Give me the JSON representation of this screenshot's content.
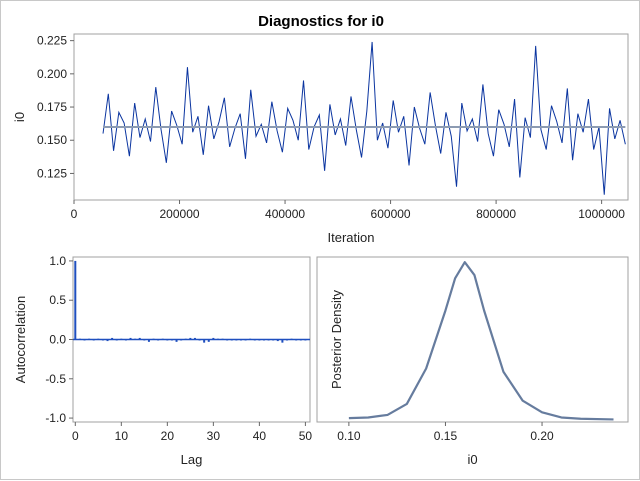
{
  "title": "Diagnostics for i0",
  "colors": {
    "trace": "#0b35a0",
    "mean": "#8c9bb2",
    "acf": "#1f4fbf",
    "density": "#667c9e",
    "frame": "#a0a0a0"
  },
  "chart_data": [
    {
      "type": "line",
      "name": "trace",
      "xlabel": "Iteration",
      "ylabel": "i0",
      "xlim": [
        0,
        1050000
      ],
      "ylim": [
        0.105,
        0.23
      ],
      "xticks": [
        "0",
        "200000",
        "400000",
        "600000",
        "800000",
        "1000000"
      ],
      "xtick_values": [
        0,
        200000,
        400000,
        600000,
        800000,
        1000000
      ],
      "yticks": [
        "0.125",
        "0.150",
        "0.175",
        "0.200",
        "0.225"
      ],
      "ytick_values": [
        0.125,
        0.15,
        0.175,
        0.2,
        0.225
      ],
      "x_start": 55000,
      "x_step": 10000,
      "mean": 0.16,
      "values": [
        0.155,
        0.185,
        0.142,
        0.171,
        0.163,
        0.138,
        0.178,
        0.152,
        0.166,
        0.149,
        0.19,
        0.158,
        0.133,
        0.172,
        0.161,
        0.147,
        0.205,
        0.156,
        0.168,
        0.139,
        0.176,
        0.151,
        0.164,
        0.182,
        0.145,
        0.159,
        0.17,
        0.136,
        0.188,
        0.153,
        0.162,
        0.148,
        0.179,
        0.157,
        0.141,
        0.174,
        0.165,
        0.15,
        0.195,
        0.143,
        0.16,
        0.169,
        0.127,
        0.177,
        0.154,
        0.166,
        0.146,
        0.183,
        0.158,
        0.137,
        0.172,
        0.224,
        0.15,
        0.163,
        0.144,
        0.18,
        0.156,
        0.168,
        0.131,
        0.175,
        0.159,
        0.147,
        0.186,
        0.161,
        0.14,
        0.171,
        0.153,
        0.115,
        0.178,
        0.157,
        0.166,
        0.149,
        0.192,
        0.155,
        0.138,
        0.173,
        0.162,
        0.145,
        0.181,
        0.122,
        0.167,
        0.152,
        0.221,
        0.158,
        0.143,
        0.176,
        0.164,
        0.148,
        0.189,
        0.135,
        0.17,
        0.156,
        0.181,
        0.143,
        0.16,
        0.109,
        0.174,
        0.151,
        0.165,
        0.147
      ]
    },
    {
      "type": "bar",
      "name": "autocorrelation",
      "xlabel": "Lag",
      "ylabel": "Autocorrelation",
      "xlim": [
        -0.5,
        51
      ],
      "ylim": [
        -1.05,
        1.05
      ],
      "xticks": [
        "0",
        "10",
        "20",
        "30",
        "40",
        "50"
      ],
      "xtick_values": [
        0,
        10,
        20,
        30,
        40,
        50
      ],
      "yticks": [
        "-1.0",
        "-0.5",
        "0.0",
        "0.5",
        "1.0"
      ],
      "ytick_values": [
        -1,
        -0.5,
        0,
        0.5,
        1
      ],
      "values": [
        1,
        0.01,
        0,
        0.01,
        0,
        0.01,
        0,
        -0.02,
        0.02,
        0,
        0.01,
        -0.01,
        0.02,
        0.01,
        0.02,
        0,
        -0.03,
        0.01,
        -0.01,
        0.01,
        -0.01,
        -0.01,
        -0.03,
        0,
        0.01,
        0.02,
        0.02,
        0,
        -0.04,
        -0.03,
        0.02,
        0.01,
        0.01,
        -0.01,
        0,
        0,
        0,
        -0.01,
        0.01,
        -0.01,
        -0.01,
        0,
        0,
        0,
        -0.02,
        -0.04,
        0,
        0.01,
        0,
        0,
        0
      ]
    },
    {
      "type": "line",
      "name": "density",
      "xlabel": "i0",
      "ylabel": "Posterior Density",
      "xlim": [
        0.0835,
        0.2445
      ],
      "ylim": [
        -0.3,
        25.3
      ],
      "xticks": [
        "0.10",
        "0.15",
        "0.20"
      ],
      "xtick_values": [
        0.1,
        0.15,
        0.2
      ],
      "x": [
        0.1,
        0.11,
        0.12,
        0.13,
        0.14,
        0.15,
        0.155,
        0.16,
        0.165,
        0.17,
        0.18,
        0.19,
        0.2,
        0.21,
        0.22,
        0.237
      ],
      "y": [
        0.3,
        0.4,
        0.8,
        2.5,
        8,
        17,
        22,
        24.5,
        22.5,
        17,
        7.5,
        3,
        1.2,
        0.4,
        0.2,
        0.1
      ]
    }
  ]
}
